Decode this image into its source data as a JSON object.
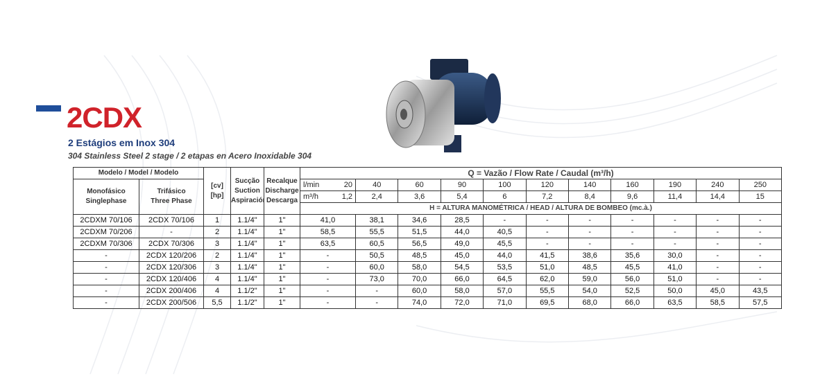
{
  "header": {
    "title": "2CDX",
    "subtitle": "2 Estágios em Inox 304",
    "tagline": "304 Stainless Steel 2 stage / 2 etapas en Acero Inoxidable 304"
  },
  "table": {
    "model_header": "Modelo / Model / Modelo",
    "single_phase": [
      "Monofásico",
      "Singlephase"
    ],
    "three_phase": [
      "Trifásico",
      "Three Phase"
    ],
    "power": [
      "[cv]",
      "[hp]"
    ],
    "suction": [
      "Sucção",
      "Suction",
      "Aspiración"
    ],
    "discharge": [
      "Recalque",
      "Discharge",
      "Descarga"
    ],
    "flow_header": "Q = Vazão / Flow Rate / Caudal  (m³/h)",
    "lmin_label": "l/min",
    "m3h_label": "m³/h",
    "lmin": [
      20,
      40,
      60,
      90,
      100,
      120,
      140,
      160,
      190,
      240,
      250
    ],
    "m3h": [
      "1,2",
      "2,4",
      "3,6",
      "5,4",
      "6",
      "7,2",
      "8,4",
      "9,6",
      "11,4",
      "14,4",
      "15"
    ],
    "head_header": "H = ALTURA MANOMÉTRICA / HEAD / ALTURA DE BOMBEO (mc.à.)",
    "rows": [
      {
        "single": "2CDXM 70/106",
        "three": "2CDX 70/106",
        "power": "1",
        "suction": "1.1/4\"",
        "discharge": "1\"",
        "heads": [
          "41,0",
          "38,1",
          "34,6",
          "28,5",
          "-",
          "-",
          "-",
          "-",
          "-",
          "-",
          "-"
        ]
      },
      {
        "single": "2CDXM 70/206",
        "three": "-",
        "power": "2",
        "suction": "1.1/4\"",
        "discharge": "1\"",
        "heads": [
          "58,5",
          "55,5",
          "51,5",
          "44,0",
          "40,5",
          "-",
          "-",
          "-",
          "-",
          "-",
          "-"
        ]
      },
      {
        "single": "2CDXM 70/306",
        "three": "2CDX 70/306",
        "power": "3",
        "suction": "1.1/4\"",
        "discharge": "1\"",
        "heads": [
          "63,5",
          "60,5",
          "56,5",
          "49,0",
          "45,5",
          "-",
          "-",
          "-",
          "-",
          "-",
          "-"
        ]
      },
      {
        "single": "-",
        "three": "2CDX 120/206",
        "power": "2",
        "suction": "1.1/4\"",
        "discharge": "1\"",
        "heads": [
          "-",
          "50,5",
          "48,5",
          "45,0",
          "44,0",
          "41,5",
          "38,6",
          "35,6",
          "30,0",
          "-",
          "-"
        ]
      },
      {
        "single": "-",
        "three": "2CDX 120/306",
        "power": "3",
        "suction": "1.1/4\"",
        "discharge": "1\"",
        "heads": [
          "-",
          "60,0",
          "58,0",
          "54,5",
          "53,5",
          "51,0",
          "48,5",
          "45,5",
          "41,0",
          "-",
          "-"
        ]
      },
      {
        "single": "-",
        "three": "2CDX 120/406",
        "power": "4",
        "suction": "1.1/4\"",
        "discharge": "1\"",
        "heads": [
          "-",
          "73,0",
          "70,0",
          "66,0",
          "64,5",
          "62,0",
          "59,0",
          "56,0",
          "51,0",
          "-",
          "-"
        ]
      },
      {
        "single": "-",
        "three": "2CDX 200/406",
        "power": "4",
        "suction": "1.1/2\"",
        "discharge": "1\"",
        "heads": [
          "-",
          "-",
          "60,0",
          "58,0",
          "57,0",
          "55,5",
          "54,0",
          "52,5",
          "50,0",
          "45,0",
          "43,5"
        ]
      },
      {
        "single": "-",
        "three": "2CDX 200/506",
        "power": "5,5",
        "suction": "1.1/2\"",
        "discharge": "1\"",
        "heads": [
          "-",
          "-",
          "74,0",
          "72,0",
          "71,0",
          "69,5",
          "68,0",
          "66,0",
          "63,5",
          "58,5",
          "57,5"
        ]
      }
    ]
  }
}
